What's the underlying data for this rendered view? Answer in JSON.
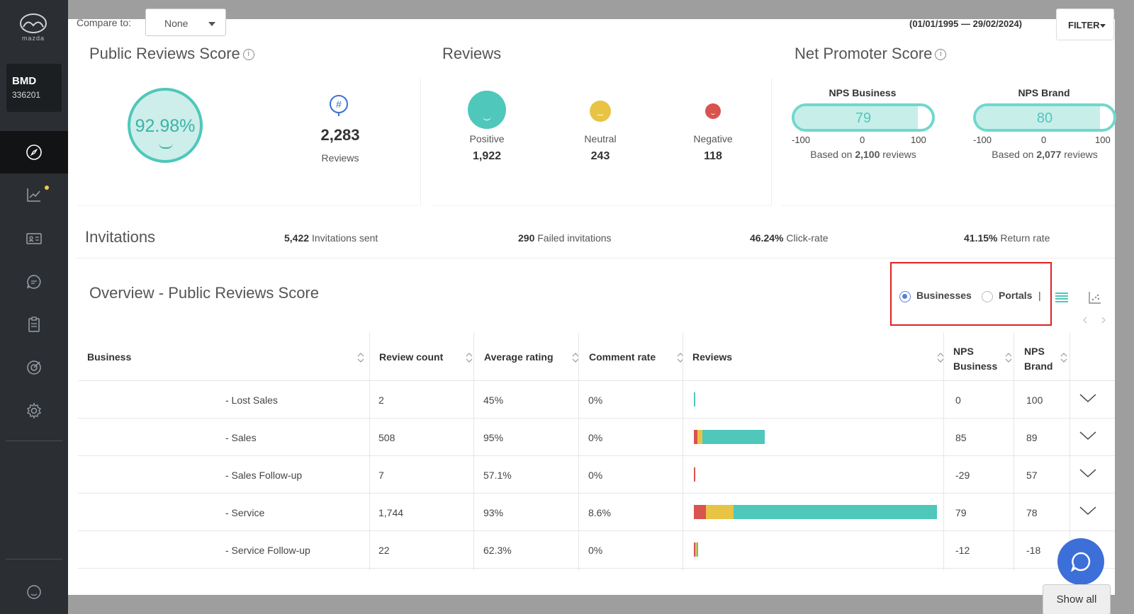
{
  "sidebar": {
    "logo_text": "mazda",
    "account_code": "BMD",
    "account_number": "336201",
    "accent_color": "#f2c94c"
  },
  "header": {
    "compare_label": "Compare to:",
    "compare_value": "None",
    "date_range": "(01/01/1995 — 29/02/2024)",
    "filter_label": "FILTER"
  },
  "public_reviews_score": {
    "title": "Public Reviews Score",
    "info_icon": "i",
    "score": "92.98%",
    "review_count": "2,283",
    "review_count_label": "Reviews",
    "hash_icon": "#"
  },
  "reviews": {
    "title": "Reviews",
    "sentiments": [
      {
        "label": "Positive",
        "value": "1,922",
        "color": "#4fc7bb"
      },
      {
        "label": "Neutral",
        "value": "243",
        "color": "#e8c444"
      },
      {
        "label": "Negative",
        "value": "118",
        "color": "#d9534f"
      }
    ]
  },
  "nps": {
    "title": "Net Promoter Score",
    "business": {
      "title": "NPS Business",
      "value": "79",
      "min": "-100",
      "mid": "0",
      "max": "100",
      "based_prefix": "Based on ",
      "based_count": "2,100",
      "based_suffix": " reviews"
    },
    "brand": {
      "title": "NPS Brand",
      "value": "80",
      "min": "-100",
      "mid": "0",
      "max": "100",
      "based_prefix": "Based on ",
      "based_count": "2,077",
      "based_suffix": " reviews"
    }
  },
  "invitations": {
    "title": "Invitations",
    "sent_value": "5,422",
    "sent_label": "Invitations sent",
    "failed_value": "290",
    "failed_label": "Failed invitations",
    "click_value": "46.24%",
    "click_label": "Click-rate",
    "return_value": "41.15%",
    "return_label": "Return rate"
  },
  "overview": {
    "title": "Overview - Public Reviews Score",
    "radio_businesses": "Businesses",
    "radio_portals": "Portals",
    "pipe": "|",
    "selected": "Businesses"
  },
  "table": {
    "headers": [
      "Business",
      "Review count",
      "Average rating",
      "Comment rate",
      "Reviews",
      "NPS Business",
      "NPS Brand"
    ],
    "headers_nps_business": [
      "NPS",
      "Business"
    ],
    "headers_nps_brand": [
      "NPS",
      "Brand"
    ],
    "rows": [
      {
        "business": "- Lost Sales",
        "review_count": "2",
        "avg_rating": "45%",
        "comment_rate": "0%",
        "nps_business": "0",
        "nps_brand": "100",
        "reviews_neg": 0,
        "reviews_neu": 0,
        "reviews_pos": 2
      },
      {
        "business": "- Sales",
        "review_count": "508",
        "avg_rating": "95%",
        "comment_rate": "0%",
        "nps_business": "85",
        "nps_brand": "89",
        "reviews_neg": 8,
        "reviews_neu": 12,
        "reviews_pos": 149
      },
      {
        "business": "- Sales Follow-up",
        "review_count": "7",
        "avg_rating": "57.1%",
        "comment_rate": "0%",
        "nps_business": "-29",
        "nps_brand": "57",
        "reviews_neg": 2,
        "reviews_neu": 0,
        "reviews_pos": 0
      },
      {
        "business": "- Service",
        "review_count": "1,744",
        "avg_rating": "93%",
        "comment_rate": "8.6%",
        "nps_business": "79",
        "nps_brand": "78",
        "reviews_neg": 29,
        "reviews_neu": 66,
        "reviews_pos": 485
      },
      {
        "business": "- Service Follow-up",
        "review_count": "22",
        "avg_rating": "62.3%",
        "comment_rate": "0%",
        "nps_business": "-12",
        "nps_brand": "-18",
        "reviews_neg": 2,
        "reviews_neu": 1,
        "reviews_pos": 2
      }
    ]
  },
  "footer": {
    "show_all": "Show all"
  },
  "colors": {
    "positive": "#4fc7bb",
    "neutral": "#e8c444",
    "negative": "#d9534f",
    "highlight": "#e02020"
  }
}
